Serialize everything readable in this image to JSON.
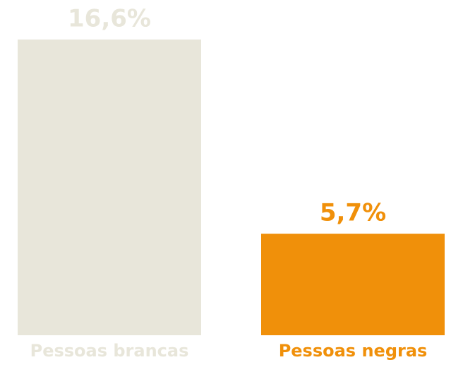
{
  "chart_data": {
    "type": "bar",
    "categories": [
      "Pessoas brancas",
      "Pessoas negras"
    ],
    "values": [
      16.6,
      5.7
    ],
    "value_labels": [
      "16,6%",
      "5,7%"
    ],
    "colors": [
      "#e8e6da",
      "#f0900a"
    ],
    "ylim": [
      0,
      16.6
    ]
  }
}
